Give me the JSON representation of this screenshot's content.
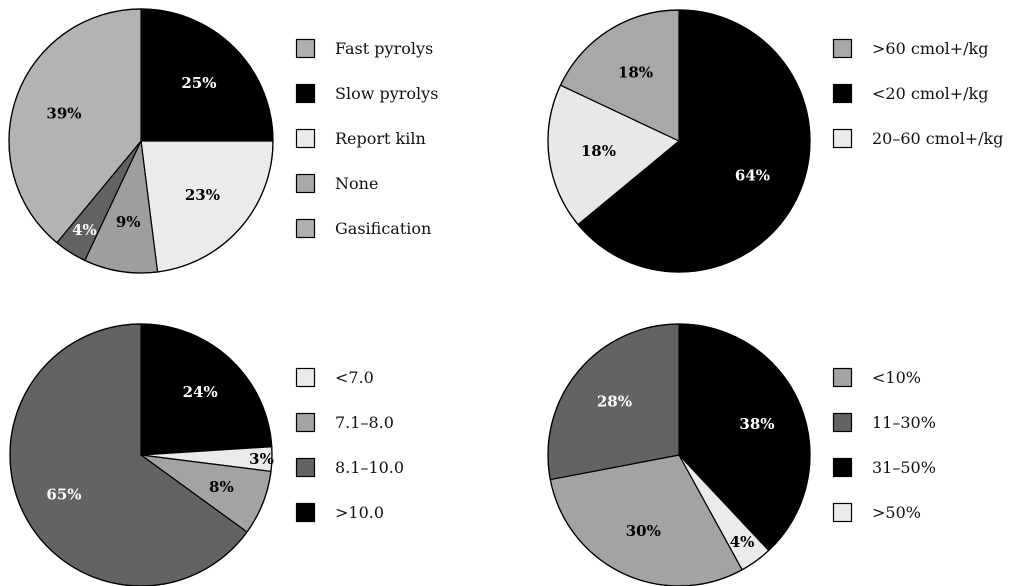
{
  "chart_data": [
    {
      "type": "pie",
      "legend_placement": "right",
      "legend": [
        {
          "label": "Fast pyrolys",
          "color": "#b0b0b0"
        },
        {
          "label": "Slow pyrolys",
          "color": "#000000"
        },
        {
          "label": "Report kiln",
          "color": "#ebebeb"
        },
        {
          "label": "None",
          "color": "#a8a8a8"
        },
        {
          "label": "Gasification",
          "color": "#b0b0b0"
        }
      ],
      "slices": [
        {
          "value": 25,
          "label": "25%",
          "color": "#000000",
          "text_color": "#ffffff"
        },
        {
          "value": 23,
          "label": "23%",
          "color": "#ebebeb",
          "text_color": "#000000"
        },
        {
          "value": 9,
          "label": "9%",
          "color": "#9e9e9e",
          "text_color": "#000000"
        },
        {
          "value": 4,
          "label": "4%",
          "color": "#636363",
          "text_color": "#ffffff"
        },
        {
          "value": 39,
          "label": "39%",
          "color": "#b3b3b3",
          "text_color": "#000000"
        }
      ]
    },
    {
      "type": "pie",
      "legend_placement": "right",
      "legend": [
        {
          "label": ">60 cmol+/kg",
          "color": "#a8a8a8"
        },
        {
          "label": "<20 cmol+/kg",
          "color": "#000000"
        },
        {
          "label": "20–60 cmol+/kg",
          "color": "#ebebeb"
        }
      ],
      "slices": [
        {
          "value": 64,
          "label": "64%",
          "color": "#000000",
          "text_color": "#ffffff"
        },
        {
          "value": 18,
          "label": "18%",
          "color": "#e8e8e8",
          "text_color": "#000000"
        },
        {
          "value": 18,
          "label": "18%",
          "color": "#a8a8a8",
          "text_color": "#000000"
        }
      ]
    },
    {
      "type": "pie",
      "legend_placement": "right",
      "legend": [
        {
          "label": "<7.0",
          "color": "#ebebeb"
        },
        {
          "label": "7.1–8.0",
          "color": "#a3a3a3"
        },
        {
          "label": "8.1–10.0",
          "color": "#636363"
        },
        {
          "label": ">10.0",
          "color": "#000000"
        }
      ],
      "slices": [
        {
          "value": 24,
          "label": "24%",
          "color": "#000000",
          "text_color": "#ffffff"
        },
        {
          "value": 3,
          "label": "3%",
          "color": "#ebebeb",
          "text_color": "#000000"
        },
        {
          "value": 8,
          "label": "8%",
          "color": "#a3a3a3",
          "text_color": "#000000"
        },
        {
          "value": 65,
          "label": "65%",
          "color": "#636363",
          "text_color": "#ffffff"
        }
      ]
    },
    {
      "type": "pie",
      "legend_placement": "right",
      "legend": [
        {
          "label": "<10%",
          "color": "#a3a3a3"
        },
        {
          "label": "11–30%",
          "color": "#636363"
        },
        {
          "label": "31–50%",
          "color": "#000000"
        },
        {
          "label": ">50%",
          "color": "#ebebeb"
        }
      ],
      "slices": [
        {
          "value": 38,
          "label": "38%",
          "color": "#000000",
          "text_color": "#ffffff"
        },
        {
          "value": 4,
          "label": "4%",
          "color": "#ebebeb",
          "text_color": "#000000"
        },
        {
          "value": 30,
          "label": "30%",
          "color": "#a3a3a3",
          "text_color": "#000000"
        },
        {
          "value": 28,
          "label": "28%",
          "color": "#636363",
          "text_color": "#ffffff"
        }
      ]
    }
  ]
}
